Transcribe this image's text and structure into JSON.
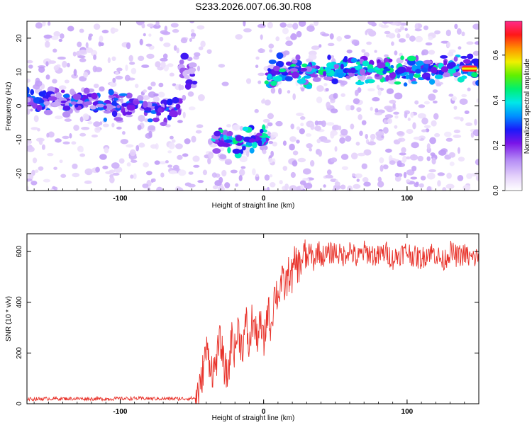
{
  "figure": {
    "title": "S233.2026.007.06.30.R08"
  },
  "chart_data": [
    {
      "type": "heatmap",
      "panel": "top",
      "xlabel": "Height of straight line (km)",
      "ylabel": "Frequency (Hz)",
      "xlim": [
        -165,
        150
      ],
      "ylim": [
        -25,
        25
      ],
      "x_ticks": [
        -100,
        0,
        100
      ],
      "y_ticks": [
        -20,
        -10,
        0,
        10,
        20
      ],
      "colorbar": {
        "label": "Normalized spectral amplitude",
        "range": [
          0,
          0.75
        ],
        "ticks": [
          0,
          0.2,
          0.4,
          0.6
        ],
        "colormap": "white-lavender-purple-blue-cyan-green-yellow-red-pink"
      },
      "ridges": [
        {
          "x_start": -165,
          "x_end": -58,
          "freq_start": 2,
          "freq_end": -1,
          "strength": 0.25
        },
        {
          "x_start": -58,
          "x_end": -48,
          "freq_start": 10,
          "freq_end": 10,
          "strength": 0.2
        },
        {
          "x_start": -35,
          "x_end": 2,
          "freq_start": -10,
          "freq_end": -10,
          "strength": 0.35
        },
        {
          "x_start": 2,
          "x_end": 150,
          "freq_start": 10,
          "freq_end": 11,
          "strength": 0.35
        }
      ]
    },
    {
      "type": "line",
      "panel": "bottom",
      "xlabel": "Height of straight line (km)",
      "ylabel": "SNR (10 * v/v)",
      "xlim": [
        -165,
        150
      ],
      "ylim": [
        0,
        670
      ],
      "x_ticks": [
        -100,
        0,
        100
      ],
      "y_ticks": [
        0,
        200,
        400,
        600
      ],
      "line_color": "#e8322a",
      "series": [
        {
          "x": [
            -165,
            -150,
            -130,
            -110,
            -90,
            -70,
            -55,
            -48,
            -44,
            -42,
            -40,
            -38,
            -35,
            -32,
            -30,
            -28,
            -25,
            -22,
            -20,
            -18,
            -15,
            -12,
            -10,
            -8,
            -5,
            -2,
            0,
            3,
            5,
            8,
            10,
            12,
            15,
            18,
            20,
            22,
            25,
            28,
            30,
            33,
            35,
            38,
            40,
            45,
            50,
            55,
            60,
            65,
            70,
            75,
            80,
            85,
            90,
            95,
            100,
            105,
            110,
            115,
            120,
            125,
            130,
            135,
            140,
            145,
            150
          ],
          "y": [
            18,
            20,
            20,
            19,
            21,
            20,
            20,
            22,
            60,
            150,
            210,
            180,
            120,
            200,
            250,
            160,
            100,
            280,
            200,
            300,
            220,
            320,
            200,
            340,
            260,
            310,
            230,
            380,
            300,
            450,
            420,
            480,
            460,
            520,
            500,
            560,
            540,
            590,
            570,
            600,
            560,
            610,
            580,
            590,
            600,
            580,
            610,
            570,
            600,
            590,
            580,
            600,
            570,
            590,
            600,
            580,
            570,
            600,
            590,
            560,
            600,
            580,
            590,
            570,
            580
          ]
        }
      ]
    }
  ]
}
